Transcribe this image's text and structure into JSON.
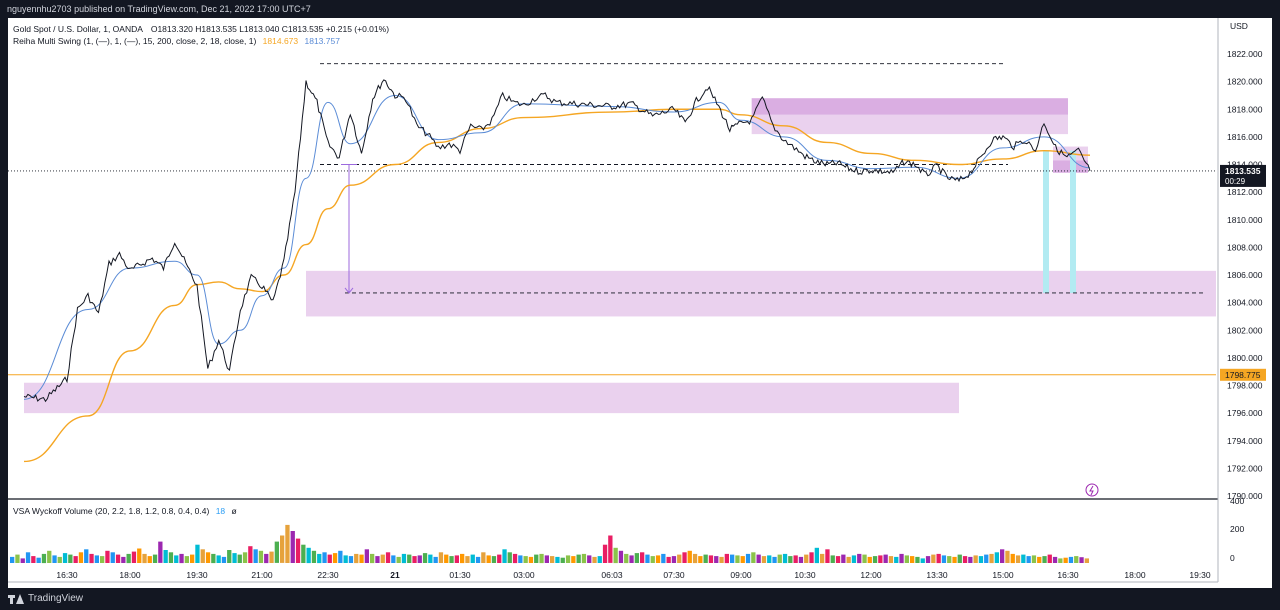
{
  "header": {
    "published": "nguyennhu2703 published on TradingView.com, Dec 21, 2022 17:00 UTC+7"
  },
  "legend": {
    "symbol": "Gold Spot / U.S. Dollar, 1, OANDA",
    "ohlc": "O1813.320  H1813.535  L1813.040  C1813.535  +0.215 (+0.01%)",
    "indicator": "Reiha Multi Swing (1, (—), 1, (—), 15, 200, close, 2, 18, close, 1)",
    "indicator_val1": "1814.673",
    "indicator_val2": "1813.757",
    "volume": "VSA Wyckoff Volume (20, 2.2, 1.8, 1.2, 0.8, 0.4, 0.4)",
    "volume_val": "18",
    "volume_sym": "ø"
  },
  "footer": {
    "brand": "TradingView"
  },
  "colors": {
    "price": "#131722",
    "fast_ma": "#5b8cd6",
    "slow_ma": "#f5a623",
    "zone": "#e1bee7",
    "zone_strong": "#ce93d8",
    "cyan": "#b2ebf2",
    "arrow": "#9c6ade",
    "divider": "#131722"
  },
  "chart_data": {
    "type": "line",
    "title": "Gold Spot / U.S. Dollar, 1, OANDA",
    "currency": "USD",
    "y_axis": {
      "min": 1790,
      "max": 1824,
      "ticks": [
        "1822.000",
        "1820.000",
        "1818.000",
        "1816.000",
        "1814.000",
        "1812.000",
        "1810.000",
        "1808.000",
        "1806.000",
        "1804.000",
        "1802.000",
        "1800.000",
        "1798.000",
        "1796.000",
        "1794.000",
        "1792.000",
        "1790.000"
      ]
    },
    "x_axis": {
      "ticks": [
        "16:30",
        "18:00",
        "19:30",
        "21:00",
        "22:30",
        "21",
        "01:30",
        "03:00",
        "06:03",
        "07:30",
        "09:00",
        "10:30",
        "12:00",
        "13:30",
        "15:00",
        "16:30",
        "18:00",
        "19:30"
      ]
    },
    "last_price": {
      "label": "1813.535",
      "countdown": "00:29",
      "value": 1813.535
    },
    "ma_label": {
      "label": "1798.775",
      "value": 1798.775
    },
    "price_series": [
      [
        "16:00",
        1797.2
      ],
      [
        "16:15",
        1797.0
      ],
      [
        "16:30",
        1798.5
      ],
      [
        "16:45",
        1803.5
      ],
      [
        "17:00",
        1804.5
      ],
      [
        "17:15",
        1803.2
      ],
      [
        "17:30",
        1806.8
      ],
      [
        "17:45",
        1807.5
      ],
      [
        "18:00",
        1806.3
      ],
      [
        "18:15",
        1806.8
      ],
      [
        "18:30",
        1807.2
      ],
      [
        "18:45",
        1806.5
      ],
      [
        "19:00",
        1808.5
      ],
      [
        "19:15",
        1806.8
      ],
      [
        "19:30",
        1805.2
      ],
      [
        "19:45",
        1799.2
      ],
      [
        "20:00",
        1801.3
      ],
      [
        "20:15",
        1799.0
      ],
      [
        "20:30",
        1803.5
      ],
      [
        "20:45",
        1805.8
      ],
      [
        "21:00",
        1805.2
      ],
      [
        "21:15",
        1804.0
      ],
      [
        "21:30",
        1807.0
      ],
      [
        "21:45",
        1812.0
      ],
      [
        "22:00",
        1820.0
      ],
      [
        "22:15",
        1818.5
      ],
      [
        "22:30",
        1815.5
      ],
      [
        "22:45",
        1814.5
      ],
      [
        "23:00",
        1817.8
      ],
      [
        "23:15",
        1814.8
      ],
      [
        "23:30",
        1818.8
      ],
      [
        "23:45",
        1820.2
      ],
      [
        "00:00",
        1819.0
      ],
      [
        "00:15",
        1818.8
      ],
      [
        "00:30",
        1816.8
      ],
      [
        "00:45",
        1816.2
      ],
      [
        "01:00",
        1815.2
      ],
      [
        "01:15",
        1815.5
      ],
      [
        "01:30",
        1815.0
      ],
      [
        "01:45",
        1816.8
      ],
      [
        "02:00",
        1816.5
      ],
      [
        "02:15",
        1817.2
      ],
      [
        "02:30",
        1819.0
      ],
      [
        "02:45",
        1818.5
      ],
      [
        "03:00",
        1818.3
      ],
      [
        "03:15",
        1818.8
      ],
      [
        "03:30",
        1819.0
      ],
      [
        "03:45",
        1818.5
      ],
      [
        "06:03",
        1818.2
      ],
      [
        "06:30",
        1818.4
      ],
      [
        "07:00",
        1817.5
      ],
      [
        "07:30",
        1818.0
      ],
      [
        "07:45",
        1817.0
      ],
      [
        "08:00",
        1818.6
      ],
      [
        "08:15",
        1819.6
      ],
      [
        "08:30",
        1818.2
      ],
      [
        "08:45",
        1816.5
      ],
      [
        "09:00",
        1817.0
      ],
      [
        "09:15",
        1817.2
      ],
      [
        "09:30",
        1818.8
      ],
      [
        "09:45",
        1816.8
      ],
      [
        "10:00",
        1815.8
      ],
      [
        "10:15",
        1815.2
      ],
      [
        "10:30",
        1814.6
      ],
      [
        "10:45",
        1814.2
      ],
      [
        "11:00",
        1814.0
      ],
      [
        "11:15",
        1814.1
      ],
      [
        "11:30",
        1813.7
      ],
      [
        "11:45",
        1813.5
      ],
      [
        "12:00",
        1813.6
      ],
      [
        "12:15",
        1813.5
      ],
      [
        "12:30",
        1813.4
      ],
      [
        "12:45",
        1814.2
      ],
      [
        "13:00",
        1814.0
      ],
      [
        "13:15",
        1813.2
      ],
      [
        "13:30",
        1813.9
      ],
      [
        "13:45",
        1813.0
      ],
      [
        "14:00",
        1812.8
      ],
      [
        "14:15",
        1813.4
      ],
      [
        "14:30",
        1814.5
      ],
      [
        "14:45",
        1815.8
      ],
      [
        "15:00",
        1816.0
      ],
      [
        "15:15",
        1815.3
      ],
      [
        "15:30",
        1815.8
      ],
      [
        "15:45",
        1815.0
      ],
      [
        "16:00",
        1817.1
      ],
      [
        "16:15",
        1815.2
      ],
      [
        "16:30",
        1814.5
      ],
      [
        "16:45",
        1815.0
      ],
      [
        "17:00",
        1813.535
      ]
    ],
    "fast_ma": [
      [
        "16:00",
        1797.0
      ],
      [
        "17:00",
        1803.5
      ],
      [
        "18:00",
        1806.5
      ],
      [
        "19:00",
        1807.0
      ],
      [
        "19:30",
        1806.0
      ],
      [
        "20:00",
        1801.0
      ],
      [
        "20:30",
        1802.0
      ],
      [
        "21:00",
        1804.5
      ],
      [
        "21:30",
        1806.5
      ],
      [
        "22:00",
        1813.0
      ],
      [
        "22:30",
        1818.5
      ],
      [
        "23:00",
        1815.5
      ],
      [
        "00:00",
        1819.0
      ],
      [
        "01:00",
        1815.8
      ],
      [
        "02:00",
        1816.3
      ],
      [
        "03:00",
        1818.4
      ],
      [
        "06:03",
        1818.2
      ],
      [
        "07:30",
        1817.8
      ],
      [
        "08:30",
        1818.5
      ],
      [
        "09:00",
        1817.2
      ],
      [
        "10:00",
        1816.0
      ],
      [
        "11:00",
        1814.3
      ],
      [
        "12:00",
        1813.7
      ],
      [
        "13:00",
        1813.8
      ],
      [
        "14:00",
        1813.0
      ],
      [
        "15:00",
        1815.2
      ],
      [
        "16:00",
        1816.0
      ],
      [
        "17:00",
        1813.757
      ]
    ],
    "slow_ma": [
      [
        "16:00",
        1792.5
      ],
      [
        "17:00",
        1795.8
      ],
      [
        "18:00",
        1800.5
      ],
      [
        "19:00",
        1803.8
      ],
      [
        "19:30",
        1805.3
      ],
      [
        "20:00",
        1805.5
      ],
      [
        "20:30",
        1805.0
      ],
      [
        "21:00",
        1804.8
      ],
      [
        "21:30",
        1806.0
      ],
      [
        "22:00",
        1808.2
      ],
      [
        "22:30",
        1810.8
      ],
      [
        "23:00",
        1812.5
      ],
      [
        "00:00",
        1814.0
      ],
      [
        "01:00",
        1815.6
      ],
      [
        "02:00",
        1816.6
      ],
      [
        "03:00",
        1817.4
      ],
      [
        "06:03",
        1817.8
      ],
      [
        "07:30",
        1818.0
      ],
      [
        "08:30",
        1818.0
      ],
      [
        "09:00",
        1817.6
      ],
      [
        "10:00",
        1816.8
      ],
      [
        "11:00",
        1815.6
      ],
      [
        "12:00",
        1814.8
      ],
      [
        "13:00",
        1814.3
      ],
      [
        "14:00",
        1814.0
      ],
      [
        "15:00",
        1814.4
      ],
      [
        "16:00",
        1815.0
      ],
      [
        "17:00",
        1814.673
      ]
    ],
    "zones": [
      {
        "from": "22:00",
        "to": "right_edge",
        "y_top": 1806.3,
        "y_bottom": 1803.0,
        "strength": "light"
      },
      {
        "from": "16:00",
        "to": "14:00",
        "y_top": 1798.2,
        "y_bottom": 1796.0,
        "strength": "light"
      },
      {
        "from": "09:15",
        "to": "16:15",
        "y_top": 1818.8,
        "y_bottom": 1817.6,
        "strength": "strong"
      },
      {
        "from": "09:15",
        "to": "16:15",
        "y_top": 1817.6,
        "y_bottom": 1816.2,
        "strength": "light"
      },
      {
        "from": "16:00",
        "to": "16:45",
        "y_top": 1815.3,
        "y_bottom": 1814.3,
        "strength": "light"
      },
      {
        "from": "16:00",
        "to": "16:45",
        "y_top": 1814.3,
        "y_bottom": 1813.4,
        "strength": "strong"
      }
    ],
    "cyan_bars": [
      {
        "at": "16:00",
        "y_top": 1815.0,
        "y_bottom": 1804.7
      },
      {
        "at": "16:30",
        "y_top": 1815.0,
        "y_bottom": 1804.7
      }
    ],
    "dashed_levels": [
      {
        "y": 1821.3,
        "from": "22:30",
        "to": "15:00"
      },
      {
        "y": 1814.0,
        "from": "22:30",
        "to": "15:00"
      },
      {
        "y": 1804.7,
        "from": "22:45",
        "to": "right_edge"
      }
    ],
    "vertical_measure": {
      "at": "22:45",
      "y_from": 1814.0,
      "y_to": 1804.7
    },
    "hlines": [
      {
        "y": 1813.535,
        "style": "dotted",
        "color": "#131722"
      },
      {
        "y": 1798.775,
        "style": "solid",
        "color": "#f5a623"
      }
    ],
    "volume": {
      "ylim": [
        0,
        400
      ],
      "ticks": [
        "400",
        "200",
        "0"
      ],
      "bars": [
        40,
        55,
        30,
        70,
        45,
        35,
        60,
        80,
        50,
        40,
        65,
        55,
        45,
        70,
        90,
        60,
        50,
        45,
        80,
        70,
        55,
        40,
        60,
        75,
        95,
        60,
        45,
        55,
        140,
        85,
        70,
        50,
        60,
        45,
        55,
        120,
        90,
        70,
        60,
        50,
        40,
        85,
        65,
        55,
        70,
        110,
        90,
        80,
        60,
        75,
        140,
        180,
        250,
        210,
        160,
        120,
        100,
        80,
        60,
        70,
        55,
        65,
        80,
        50,
        45,
        60,
        55,
        90,
        60,
        45,
        55,
        70,
        50,
        40,
        60,
        55,
        45,
        50,
        65,
        55,
        40,
        70,
        55,
        45,
        50,
        60,
        45,
        55,
        40,
        70,
        50,
        45,
        55,
        90,
        70,
        60,
        50,
        45,
        40,
        55,
        60,
        50,
        45,
        40,
        35,
        50,
        45,
        55,
        60,
        50,
        40,
        45,
        120,
        180,
        100,
        80,
        60,
        50,
        65,
        70,
        55,
        45,
        50,
        60,
        40,
        45,
        55,
        70,
        80,
        60,
        45,
        55,
        50,
        45,
        40,
        60,
        55,
        50,
        45,
        60,
        70,
        55,
        45,
        50,
        40,
        55,
        60,
        45,
        50,
        40,
        55,
        70,
        100,
        60,
        90,
        50,
        45,
        55,
        40,
        50,
        60,
        55,
        40,
        45,
        50,
        55,
        45,
        40,
        60,
        50,
        45,
        40,
        30,
        45,
        55,
        60,
        50,
        45,
        40,
        55,
        45,
        40,
        50,
        45,
        55,
        60,
        70,
        90,
        80,
        60,
        50,
        55,
        45,
        50,
        40,
        45,
        55,
        40,
        30,
        35,
        40,
        45,
        38,
        30
      ]
    }
  }
}
